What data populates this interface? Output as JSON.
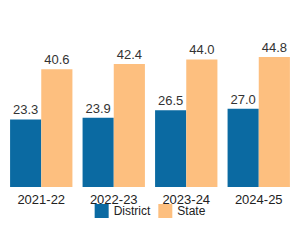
{
  "chart_data": {
    "type": "bar",
    "categories": [
      "2021-22",
      "2022-23",
      "2023-24",
      "2024-25"
    ],
    "series": [
      {
        "name": "District",
        "color": "#0b6aa2",
        "values": [
          23.3,
          23.9,
          26.5,
          27.0
        ],
        "value_labels": [
          "23.3",
          "23.9",
          "26.5",
          "27.0"
        ]
      },
      {
        "name": "State",
        "color": "#fdbf7f",
        "values": [
          40.6,
          42.4,
          44.0,
          44.8
        ],
        "value_labels": [
          "40.6",
          "42.4",
          "44.0",
          "44.8"
        ]
      }
    ],
    "ylim": [
      0,
      50
    ],
    "yticks": [
      0,
      50
    ],
    "grid": false,
    "legend": "bottom",
    "data_labels": true,
    "tick_labels": "x"
  }
}
